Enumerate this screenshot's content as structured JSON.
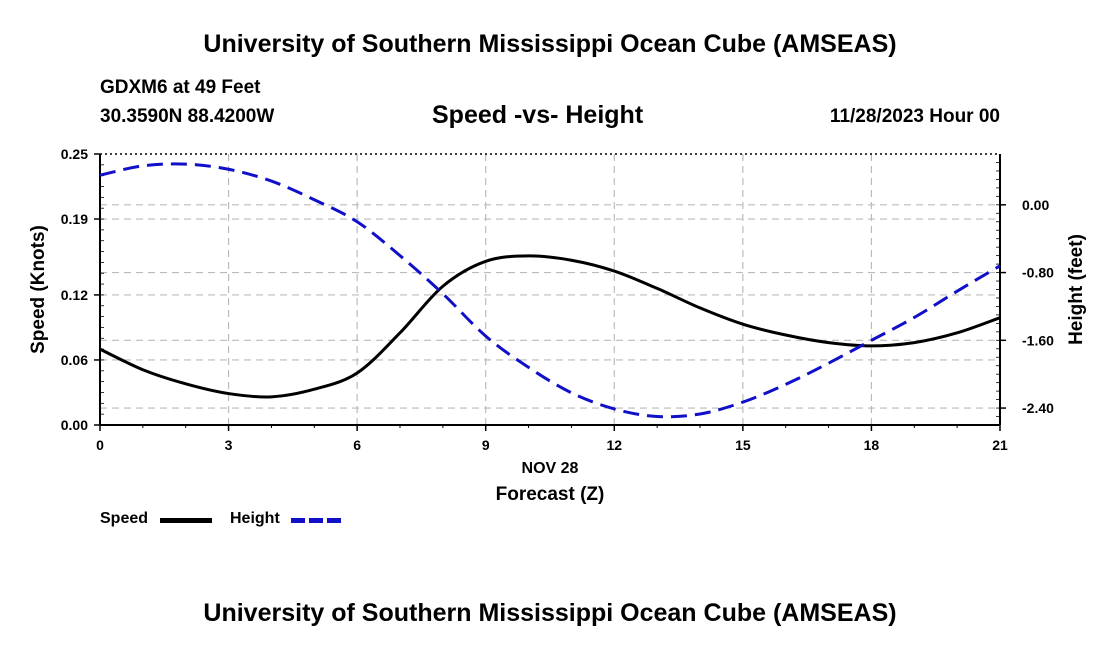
{
  "header": {
    "title": "University of Southern Mississippi Ocean Cube (AMSEAS)",
    "station": "GDXM6 at 49 Feet",
    "coords": "30.3590N  88.4200W",
    "subtitle": "Speed -vs- Height",
    "datehour": "11/28/2023 Hour 00"
  },
  "footer": {
    "title": "University of Southern Mississippi Ocean Cube (AMSEAS)"
  },
  "legend": {
    "speed": "Speed",
    "height": "Height"
  },
  "colors": {
    "speed": "#000000",
    "height": "#1010c8",
    "grid": "#bbbbbb"
  },
  "chart_data": {
    "type": "line",
    "title": "Speed -vs- Height",
    "xlabel": "Forecast (Z)",
    "xdate_label": "NOV 28",
    "ylabel_left": "Speed (Knots)",
    "ylabel_right": "Height (feet)",
    "xlim": [
      0,
      21
    ],
    "ylim_left": [
      0,
      0.25
    ],
    "ylim_right": [
      -2.6,
      0.6
    ],
    "x_ticks": [
      0,
      3,
      6,
      9,
      12,
      15,
      18,
      21
    ],
    "y_left_ticks": [
      "0.00",
      "0.06",
      "0.12",
      "0.19",
      "0.25"
    ],
    "y_right_ticks": [
      "0.00",
      "-0.80",
      "-1.60",
      "-2.40"
    ],
    "grid": true,
    "series": [
      {
        "name": "Speed",
        "axis": "left",
        "style": "solid",
        "x": [
          0,
          1,
          2,
          3,
          4,
          5,
          6,
          7,
          8,
          9,
          10,
          11,
          12,
          13,
          14,
          15,
          16,
          17,
          18,
          19,
          20,
          21
        ],
        "values": [
          0.07,
          0.051,
          0.038,
          0.029,
          0.026,
          0.033,
          0.048,
          0.085,
          0.128,
          0.151,
          0.156,
          0.152,
          0.142,
          0.126,
          0.108,
          0.093,
          0.083,
          0.076,
          0.073,
          0.076,
          0.085,
          0.099
        ]
      },
      {
        "name": "Height",
        "axis": "right",
        "style": "dashed",
        "x": [
          0,
          1,
          2,
          3,
          4,
          5,
          6,
          7,
          8,
          9,
          10,
          11,
          12,
          13,
          14,
          15,
          16,
          17,
          18,
          19,
          20,
          21
        ],
        "values": [
          0.35,
          0.46,
          0.48,
          0.42,
          0.28,
          0.06,
          -0.2,
          -0.6,
          -1.05,
          -1.55,
          -1.92,
          -2.22,
          -2.41,
          -2.5,
          -2.47,
          -2.33,
          -2.12,
          -1.87,
          -1.6,
          -1.33,
          -1.02,
          -0.72
        ]
      }
    ]
  }
}
